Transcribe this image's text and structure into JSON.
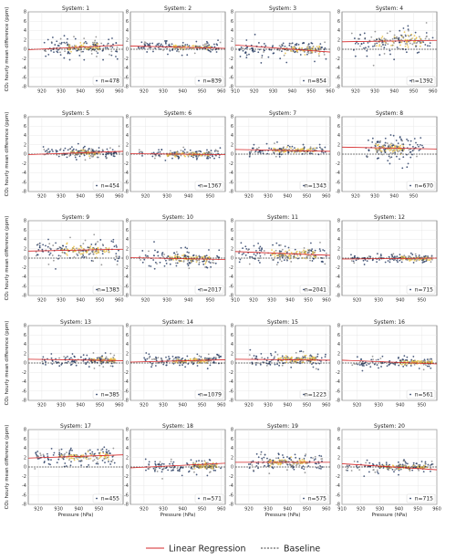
{
  "chart_data": {
    "type": "scatter",
    "layout": "5x4 panel grid",
    "ylabel": "CO₂ hourly mean difference (ppm)",
    "xlabel": "Pressure (hPa)",
    "ylim": [
      -8,
      8
    ],
    "yticks": [
      -8,
      -6,
      -4,
      -2,
      0,
      2,
      4,
      6,
      8
    ],
    "grid": true,
    "colors": {
      "points_low_density": "#2b3f66",
      "points_mid_density": "#8a8a8a",
      "points_high_density": "#e8c24a",
      "regression": "#d62728",
      "baseline": "#000000"
    },
    "legend": {
      "placement": "bottom-center",
      "entries": [
        {
          "label": "Linear Regression",
          "style": "solid",
          "color": "#d62728"
        },
        {
          "label": "Baseline",
          "style": "dashed",
          "color": "#000000"
        }
      ]
    },
    "panels": [
      {
        "title": "System: 1",
        "n_label": "n=478",
        "xlim": [
          913,
          962
        ],
        "xticks": [
          920,
          930,
          940,
          950,
          960
        ],
        "regression": {
          "x0": 913,
          "y0": -0.1,
          "x1": 962,
          "y1": 0.9
        },
        "cloud": {
          "center": 0.4,
          "spread": 1.1,
          "x_from": 921,
          "x_to": 960,
          "dense_from": 932,
          "dense_to": 950
        }
      },
      {
        "title": "System: 2",
        "n_label": "n=839",
        "xlim": [
          913,
          962
        ],
        "xticks": [
          920,
          930,
          940,
          950,
          960
        ],
        "regression": {
          "x0": 913,
          "y0": 0.7,
          "x1": 962,
          "y1": 0.2
        },
        "cloud": {
          "center": 0.5,
          "spread": 0.6,
          "x_from": 917,
          "x_to": 960,
          "dense_from": 935,
          "dense_to": 955
        }
      },
      {
        "title": "System: 3",
        "n_label": "n=854",
        "xlim": [
          910,
          960
        ],
        "xticks": [
          910,
          920,
          930,
          940,
          950,
          960
        ],
        "regression": {
          "x0": 910,
          "y0": 0.9,
          "x1": 960,
          "y1": -0.6
        },
        "cloud": {
          "center": 0.0,
          "spread": 1.0,
          "x_from": 912,
          "x_to": 958,
          "dense_from": 935,
          "dense_to": 955
        }
      },
      {
        "title": "System: 4",
        "n_label": "n=1392",
        "xlim": [
          913,
          962
        ],
        "xticks": [
          920,
          930,
          940,
          950,
          960
        ],
        "regression": {
          "x0": 913,
          "y0": 1.6,
          "x1": 962,
          "y1": 1.9
        },
        "cloud": {
          "center": 1.7,
          "spread": 1.6,
          "x_from": 918,
          "x_to": 960,
          "dense_from": 930,
          "dense_to": 955
        }
      },
      {
        "title": "System: 5",
        "n_label": "n=454",
        "xlim": [
          913,
          962
        ],
        "xticks": [
          920,
          930,
          940,
          950,
          960
        ],
        "regression": {
          "x0": 913,
          "y0": -0.1,
          "x1": 962,
          "y1": 0.6
        },
        "cloud": {
          "center": 0.3,
          "spread": 0.7,
          "x_from": 920,
          "x_to": 960,
          "dense_from": 935,
          "dense_to": 950
        }
      },
      {
        "title": "System: 6",
        "n_label": "n=1367",
        "xlim": [
          913,
          957
        ],
        "xticks": [
          920,
          930,
          940,
          950
        ],
        "regression": {
          "x0": 913,
          "y0": 0.1,
          "x1": 957,
          "y1": -0.1
        },
        "cloud": {
          "center": 0.0,
          "spread": 0.6,
          "x_from": 917,
          "x_to": 955,
          "dense_from": 930,
          "dense_to": 950
        }
      },
      {
        "title": "System: 7",
        "n_label": "n=1343",
        "xlim": [
          913,
          962
        ],
        "xticks": [
          920,
          930,
          940,
          950,
          960
        ],
        "regression": {
          "x0": 913,
          "y0": 1.0,
          "x1": 962,
          "y1": 0.6
        },
        "cloud": {
          "center": 0.8,
          "spread": 0.7,
          "x_from": 920,
          "x_to": 960,
          "dense_from": 932,
          "dense_to": 955
        }
      },
      {
        "title": "System: 8",
        "n_label": "n=670",
        "xlim": [
          913,
          962
        ],
        "xticks": [
          920,
          930,
          940,
          950
        ],
        "regression": {
          "x0": 913,
          "y0": 1.5,
          "x1": 962,
          "y1": 1.1
        },
        "cloud": {
          "center": 1.2,
          "spread": 1.5,
          "x_from": 925,
          "x_to": 955,
          "dense_from": 930,
          "dense_to": 945
        }
      },
      {
        "title": "System: 9",
        "n_label": "n=1383",
        "xlim": [
          913,
          962
        ],
        "xticks": [
          920,
          930,
          940,
          950,
          960
        ],
        "regression": {
          "x0": 913,
          "y0": 1.5,
          "x1": 962,
          "y1": 1.9
        },
        "cloud": {
          "center": 1.6,
          "spread": 1.4,
          "x_from": 917,
          "x_to": 960,
          "dense_from": 930,
          "dense_to": 955
        }
      },
      {
        "title": "System: 10",
        "n_label": "n=2017",
        "xlim": [
          913,
          957
        ],
        "xticks": [
          920,
          930,
          940,
          950
        ],
        "regression": {
          "x0": 913,
          "y0": 0.1,
          "x1": 957,
          "y1": -0.3
        },
        "cloud": {
          "center": -0.1,
          "spread": 1.0,
          "x_from": 917,
          "x_to": 955,
          "dense_from": 930,
          "dense_to": 950
        }
      },
      {
        "title": "System: 11",
        "n_label": "n=2041",
        "xlim": [
          910,
          962
        ],
        "xticks": [
          910,
          920,
          930,
          940,
          950,
          960
        ],
        "regression": {
          "x0": 910,
          "y0": 1.4,
          "x1": 962,
          "y1": 0.6
        },
        "cloud": {
          "center": 0.9,
          "spread": 1.4,
          "x_from": 912,
          "x_to": 960,
          "dense_from": 930,
          "dense_to": 955
        }
      },
      {
        "title": "System: 12",
        "n_label": "n=715",
        "xlim": [
          913,
          957
        ],
        "xticks": [
          920,
          930,
          940,
          950
        ],
        "regression": {
          "x0": 913,
          "y0": -0.2,
          "x1": 957,
          "y1": 0.0
        },
        "cloud": {
          "center": -0.1,
          "spread": 0.5,
          "x_from": 917,
          "x_to": 955,
          "dense_from": 940,
          "dense_to": 955
        }
      },
      {
        "title": "System: 13",
        "n_label": "n=385",
        "xlim": [
          913,
          962
        ],
        "xticks": [
          920,
          930,
          940,
          950,
          960
        ],
        "regression": {
          "x0": 913,
          "y0": 0.8,
          "x1": 962,
          "y1": 0.5
        },
        "cloud": {
          "center": 0.6,
          "spread": 0.6,
          "x_from": 920,
          "x_to": 958,
          "dense_from": 945,
          "dense_to": 958
        }
      },
      {
        "title": "System: 14",
        "n_label": "n=1079",
        "xlim": [
          913,
          962
        ],
        "xticks": [
          920,
          930,
          940,
          950,
          960
        ],
        "regression": {
          "x0": 913,
          "y0": 0.2,
          "x1": 962,
          "y1": 0.7
        },
        "cloud": {
          "center": 0.5,
          "spread": 0.7,
          "x_from": 920,
          "x_to": 960,
          "dense_from": 935,
          "dense_to": 955
        }
      },
      {
        "title": "System: 15",
        "n_label": "n=1223",
        "xlim": [
          913,
          962
        ],
        "xticks": [
          920,
          930,
          940,
          950,
          960
        ],
        "regression": {
          "x0": 913,
          "y0": 0.8,
          "x1": 962,
          "y1": 0.6
        },
        "cloud": {
          "center": 0.8,
          "spread": 0.9,
          "x_from": 920,
          "x_to": 960,
          "dense_from": 935,
          "dense_to": 955
        }
      },
      {
        "title": "System: 16",
        "n_label": "n=561",
        "xlim": [
          913,
          957
        ],
        "xticks": [
          920,
          930,
          940,
          950
        ],
        "regression": {
          "x0": 913,
          "y0": 0.6,
          "x1": 957,
          "y1": -0.2
        },
        "cloud": {
          "center": 0.1,
          "spread": 0.7,
          "x_from": 917,
          "x_to": 955,
          "dense_from": 940,
          "dense_to": 955
        }
      },
      {
        "title": "System: 17",
        "n_label": "n=455",
        "xlim": [
          915,
          962
        ],
        "xticks": [
          920,
          930,
          940,
          950
        ],
        "regression": {
          "x0": 915,
          "y0": 1.9,
          "x1": 962,
          "y1": 2.6
        },
        "cloud": {
          "center": 2.2,
          "spread": 1.0,
          "x_from": 918,
          "x_to": 958,
          "dense_from": 930,
          "dense_to": 955
        }
      },
      {
        "title": "System: 18",
        "n_label": "n=571",
        "xlim": [
          913,
          962
        ],
        "xticks": [
          920,
          930,
          940,
          950,
          960
        ],
        "regression": {
          "x0": 913,
          "y0": -0.2,
          "x1": 962,
          "y1": 0.8
        },
        "cloud": {
          "center": 0.2,
          "spread": 0.8,
          "x_from": 920,
          "x_to": 960,
          "dense_from": 945,
          "dense_to": 958
        }
      },
      {
        "title": "System: 19",
        "n_label": "n=575",
        "xlim": [
          913,
          962
        ],
        "xticks": [
          920,
          930,
          940,
          950,
          960
        ],
        "regression": {
          "x0": 913,
          "y0": 1.0,
          "x1": 962,
          "y1": 1.0
        },
        "cloud": {
          "center": 1.0,
          "spread": 0.9,
          "x_from": 920,
          "x_to": 958,
          "dense_from": 930,
          "dense_to": 950
        }
      },
      {
        "title": "System: 20",
        "n_label": "n=715",
        "xlim": [
          910,
          960
        ],
        "xticks": [
          910,
          920,
          930,
          940,
          950,
          960
        ],
        "regression": {
          "x0": 910,
          "y0": 0.7,
          "x1": 960,
          "y1": -0.6
        },
        "cloud": {
          "center": 0.0,
          "spread": 0.7,
          "x_from": 912,
          "x_to": 958,
          "dense_from": 930,
          "dense_to": 955
        }
      }
    ]
  }
}
